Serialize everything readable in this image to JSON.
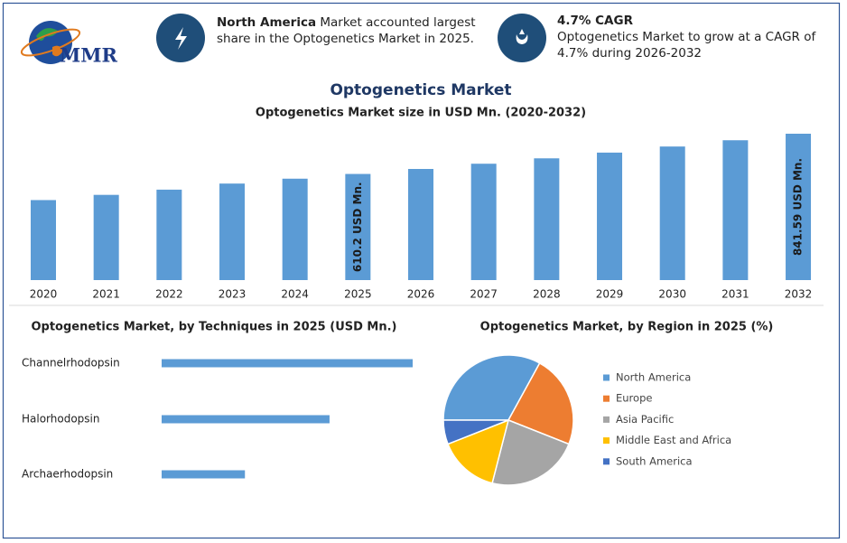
{
  "header": {
    "logo": "MMR",
    "items": [
      {
        "bold": "North America",
        "text": " Market accounted largest share in the Optogenetics Market in 2025."
      },
      {
        "bold": "4.7% CAGR",
        "text": "Optogenetics Market to grow at a CAGR of 4.7% during 2026-2032"
      }
    ]
  },
  "title": "Optogenetics Market",
  "chart_data": [
    {
      "type": "bar",
      "title": "Optogenetics Market size in USD Mn. (2020-2032)",
      "categories": [
        "2020",
        "2021",
        "2022",
        "2023",
        "2024",
        "2025",
        "2026",
        "2027",
        "2028",
        "2029",
        "2030",
        "2031",
        "2032"
      ],
      "values": [
        460,
        490,
        520,
        555,
        583,
        610.2,
        639,
        669,
        700,
        733,
        768,
        804,
        841.59
      ],
      "value_labels": [
        null,
        null,
        null,
        null,
        null,
        "610.2 USD Mn.",
        null,
        null,
        null,
        null,
        null,
        null,
        "841.59 USD Mn."
      ],
      "color": "#5b9bd5"
    },
    {
      "type": "hbar",
      "title": "Optogenetics Market, by Techniques in 2025 (USD Mn.)",
      "categories": [
        "Channelrhodopsin",
        "Halorhodopsin",
        "Archaerhodopsin"
      ],
      "values": [
        305,
        204,
        101.2
      ],
      "color": "#5b9bd5"
    },
    {
      "type": "pie",
      "title": "Optogenetics Market, by Region in 2025 (%)",
      "categories": [
        "North America",
        "Europe",
        "Asia Pacific",
        "Middle East and Africa",
        "South America"
      ],
      "values": [
        33,
        23,
        23,
        15,
        6
      ],
      "colors": [
        "#5b9bd5",
        "#ed7d31",
        "#a5a5a5",
        "#ffc000",
        "#4472c4"
      ],
      "legend": "right"
    }
  ]
}
